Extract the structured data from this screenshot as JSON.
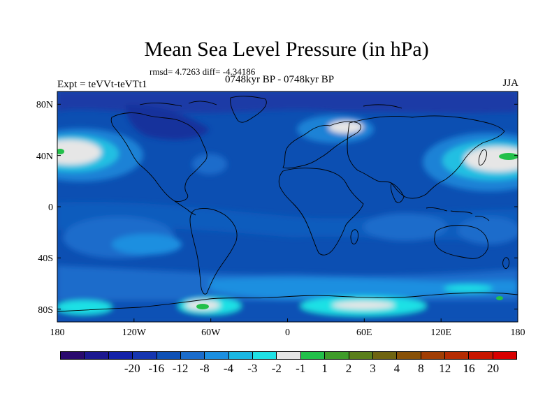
{
  "title": "Mean Sea Level Pressure (in hPa)",
  "stats": "rmsd= 4.7263 diff= -4.34186",
  "period": "0748kyr BP - 0748kyr BP",
  "expt": "Expt = teVVt-teVTt1",
  "season": "JJA",
  "map": {
    "lat_ticks": [
      "80N",
      "40N",
      "0",
      "40S",
      "80S"
    ],
    "lon_ticks": [
      "180",
      "120W",
      "60W",
      "0",
      "60E",
      "120E",
      "180"
    ],
    "background_color": "#0c4fb2"
  },
  "colorbar": {
    "colors": [
      "#2a0a6e",
      "#1c1890",
      "#1422a8",
      "#1636b0",
      "#0f51b5",
      "#1a6ccb",
      "#1c8fe0",
      "#1ab7e3",
      "#1fe1e5",
      "#e6e6e6",
      "#22c04a",
      "#3f9c2a",
      "#5a7f1c",
      "#6f6410",
      "#885108",
      "#a13e04",
      "#b52c02",
      "#c81700",
      "#d90000"
    ],
    "labels": [
      "-20",
      "-16",
      "-12",
      "-8",
      "-4",
      "-3",
      "-2",
      "-1",
      "1",
      "2",
      "3",
      "4",
      "8",
      "12",
      "16",
      "20"
    ]
  }
}
